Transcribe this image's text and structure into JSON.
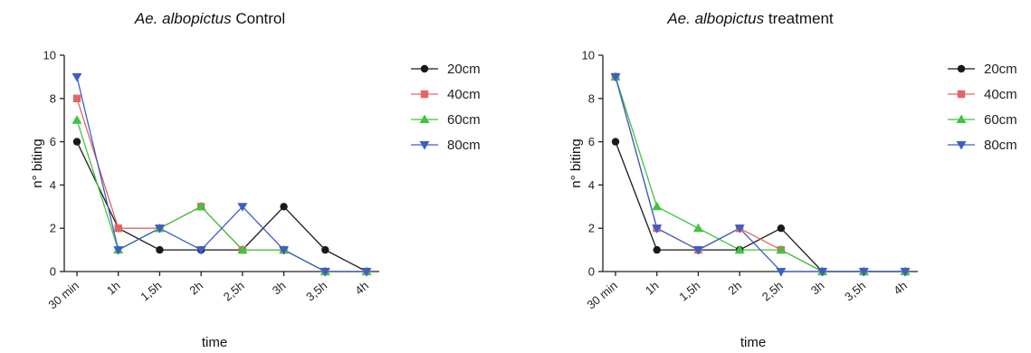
{
  "chart_data": [
    {
      "type": "line",
      "title": {
        "species": "Ae. albopictus",
        "condition": "Control"
      },
      "xlabel": "time",
      "ylabel": "n° biting",
      "categories": [
        "30 min",
        "1h",
        "1,5h",
        "2h",
        "2,5h",
        "3h",
        "3,5h",
        "4h"
      ],
      "ylim": [
        0,
        10
      ],
      "yticks": [
        "0",
        "2",
        "4",
        "6",
        "8",
        "10"
      ],
      "legend_position": "right",
      "series": [
        {
          "name": "20cm",
          "color": "#1a1a1a",
          "marker": "circle",
          "values": [
            6,
            2,
            1,
            1,
            1,
            3,
            1,
            0
          ]
        },
        {
          "name": "40cm",
          "color": "#e06666",
          "marker": "square",
          "values": [
            8,
            2,
            2,
            3,
            1,
            1,
            0,
            0
          ]
        },
        {
          "name": "60cm",
          "color": "#3fc43f",
          "marker": "triangle-up",
          "values": [
            7,
            1,
            2,
            3,
            1,
            1,
            0,
            0
          ]
        },
        {
          "name": "80cm",
          "color": "#3a5fc8",
          "marker": "triangle-down",
          "values": [
            9,
            1,
            2,
            1,
            3,
            1,
            0,
            0
          ]
        }
      ]
    },
    {
      "type": "line",
      "title": {
        "species": "Ae. albopictus",
        "condition": "treatment"
      },
      "xlabel": "time",
      "ylabel": "n° biting",
      "categories": [
        "30 min",
        "1h",
        "1,5h",
        "2h",
        "2,5h",
        "3h",
        "3,5h",
        "4h"
      ],
      "ylim": [
        0,
        10
      ],
      "yticks": [
        "0",
        "2",
        "4",
        "6",
        "8",
        "10"
      ],
      "legend_position": "right",
      "series": [
        {
          "name": "20cm",
          "color": "#1a1a1a",
          "marker": "circle",
          "values": [
            6,
            1,
            1,
            1,
            2,
            0,
            0,
            0
          ]
        },
        {
          "name": "40cm",
          "color": "#e06666",
          "marker": "square",
          "values": [
            9,
            2,
            1,
            2,
            1,
            0,
            0,
            0
          ]
        },
        {
          "name": "60cm",
          "color": "#3fc43f",
          "marker": "triangle-up",
          "values": [
            9,
            3,
            2,
            1,
            1,
            0,
            0,
            0
          ]
        },
        {
          "name": "80cm",
          "color": "#3a5fc8",
          "marker": "triangle-down",
          "values": [
            9,
            2,
            1,
            2,
            0,
            0,
            0,
            0
          ]
        }
      ]
    }
  ]
}
